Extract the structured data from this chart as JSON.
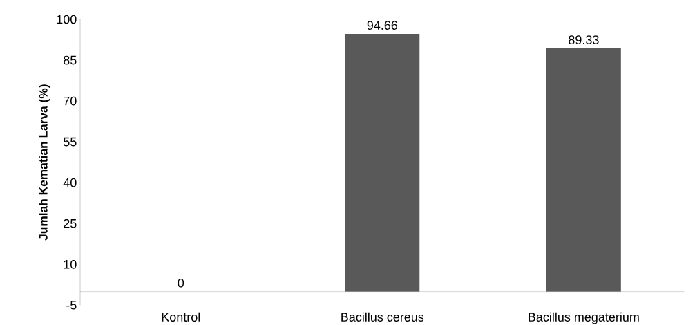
{
  "chart_data": {
    "type": "bar",
    "ylabel": "Jumlah Kematian Larva (%)",
    "categories": [
      "Kontrol",
      "Bacillus cereus",
      "Bacillus megaterium"
    ],
    "values": [
      0,
      94.66,
      89.33
    ],
    "color": "#595959",
    "ylim": [
      -5,
      100
    ],
    "yticks": [
      -5,
      10,
      25,
      40,
      55,
      70,
      85,
      100
    ],
    "data_labels": true
  }
}
